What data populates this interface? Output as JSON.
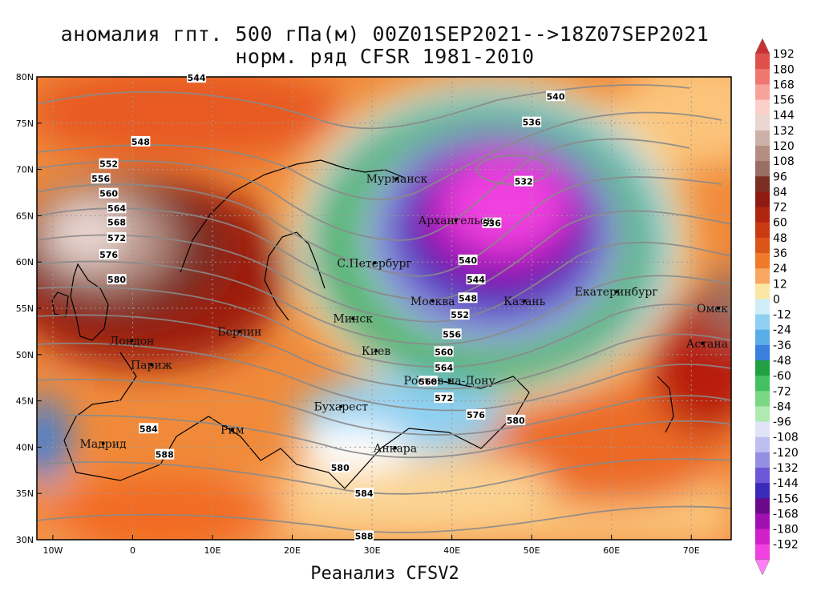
{
  "title": {
    "line1": "аномалия гпт. 500 гПа(м) 00Z01SEP2021-->18Z07SEP2021",
    "line2": "норм. ряд CFSR 1981-2010"
  },
  "footer": "Реанализ CFSV2",
  "map": {
    "lon_range": [
      -12,
      75
    ],
    "lat_range": [
      30,
      80
    ],
    "lat_labels": [
      "30N",
      "35N",
      "40N",
      "45N",
      "50N",
      "55N",
      "60N",
      "65N",
      "70N",
      "75N",
      "80N"
    ],
    "lon_labels": [
      "10W",
      "0",
      "10E",
      "20E",
      "30E",
      "40E",
      "50E",
      "60E",
      "70E"
    ],
    "cities": [
      {
        "name": "Мурманск",
        "lon": 33.1,
        "lat": 69.0
      },
      {
        "name": "Архангельск",
        "lon": 40.5,
        "lat": 64.5
      },
      {
        "name": "С.Петербург",
        "lon": 30.3,
        "lat": 59.9
      },
      {
        "name": "Москва",
        "lon": 37.6,
        "lat": 55.8
      },
      {
        "name": "Казань",
        "lon": 49.1,
        "lat": 55.8
      },
      {
        "name": "Екатеринбург",
        "lon": 60.6,
        "lat": 56.8
      },
      {
        "name": "Минск",
        "lon": 27.6,
        "lat": 53.9
      },
      {
        "name": "Омск",
        "lon": 73.4,
        "lat": 55.0
      },
      {
        "name": "Лондон",
        "lon": -0.1,
        "lat": 51.5
      },
      {
        "name": "Берлин",
        "lon": 13.4,
        "lat": 52.5
      },
      {
        "name": "Киев",
        "lon": 30.5,
        "lat": 50.4
      },
      {
        "name": "Астана",
        "lon": 71.4,
        "lat": 51.2
      },
      {
        "name": "Париж",
        "lon": 2.35,
        "lat": 48.9
      },
      {
        "name": "Ростов-на-Дону",
        "lon": 39.7,
        "lat": 47.2
      },
      {
        "name": "Бухарест",
        "lon": 26.1,
        "lat": 44.4
      },
      {
        "name": "Рим",
        "lon": 12.5,
        "lat": 41.9
      },
      {
        "name": "Мадрид",
        "lon": -3.7,
        "lat": 40.4
      },
      {
        "name": "Анкара",
        "lon": 32.9,
        "lat": 39.9
      }
    ],
    "contour_labels": [
      {
        "text": "544",
        "lon": 8,
        "lat": 79.9
      },
      {
        "text": "540",
        "lon": 53,
        "lat": 77.9
      },
      {
        "text": "536",
        "lon": 50,
        "lat": 75.1
      },
      {
        "text": "548",
        "lon": 1,
        "lat": 73.0
      },
      {
        "text": "552",
        "lon": -3,
        "lat": 70.6
      },
      {
        "text": "556",
        "lon": -4,
        "lat": 69.0
      },
      {
        "text": "560",
        "lon": -3,
        "lat": 67.4
      },
      {
        "text": "564",
        "lon": -2,
        "lat": 65.8
      },
      {
        "text": "568",
        "lon": -2,
        "lat": 64.3
      },
      {
        "text": "572",
        "lon": -2,
        "lat": 62.6
      },
      {
        "text": "576",
        "lon": -3,
        "lat": 60.8
      },
      {
        "text": "580",
        "lon": -2,
        "lat": 58.1
      },
      {
        "text": "532",
        "lon": 49,
        "lat": 68.7
      },
      {
        "text": "536",
        "lon": 45,
        "lat": 64.2
      },
      {
        "text": "540",
        "lon": 42,
        "lat": 60.2
      },
      {
        "text": "544",
        "lon": 43,
        "lat": 58.1
      },
      {
        "text": "548",
        "lon": 42,
        "lat": 56.1
      },
      {
        "text": "552",
        "lon": 41,
        "lat": 54.3
      },
      {
        "text": "556",
        "lon": 40,
        "lat": 52.2
      },
      {
        "text": "560",
        "lon": 39,
        "lat": 50.3
      },
      {
        "text": "564",
        "lon": 39,
        "lat": 48.6
      },
      {
        "text": "568",
        "lon": 37,
        "lat": 47.1
      },
      {
        "text": "572",
        "lon": 39,
        "lat": 45.3
      },
      {
        "text": "576",
        "lon": 43,
        "lat": 43.5
      },
      {
        "text": "580",
        "lon": 48,
        "lat": 42.9
      },
      {
        "text": "584",
        "lon": 2,
        "lat": 42.0
      },
      {
        "text": "588",
        "lon": 4,
        "lat": 39.2
      },
      {
        "text": "580",
        "lon": 26,
        "lat": 37.8
      },
      {
        "text": "584",
        "lon": 29,
        "lat": 35.0
      },
      {
        "text": "588",
        "lon": 29,
        "lat": 30.4
      }
    ]
  },
  "colorbar": {
    "labels": [
      "192",
      "180",
      "168",
      "156",
      "144",
      "132",
      "120",
      "108",
      "96",
      "84",
      "72",
      "60",
      "48",
      "36",
      "24",
      "12",
      "0",
      "-12",
      "-24",
      "-36",
      "-48",
      "-60",
      "-72",
      "-84",
      "-96",
      "-108",
      "-120",
      "-132",
      "-144",
      "-156",
      "-168",
      "-180",
      "-192"
    ],
    "colors": [
      "#c83232",
      "#e0504a",
      "#ee7870",
      "#f7a39c",
      "#fbd0cb",
      "#ead7d2",
      "#cdb1a8",
      "#b48e82",
      "#9a6e62",
      "#7a2e24",
      "#8e1a12",
      "#b0250e",
      "#c93a12",
      "#dc5518",
      "#ee7a2a",
      "#f8a660",
      "#fbe7a3",
      "#cfeefa",
      "#8fd0f2",
      "#5aaee8",
      "#3a7fdc",
      "#20a040",
      "#44c060",
      "#7ad884",
      "#b0eab0",
      "#e0e4f6",
      "#bdbff0",
      "#9390e4",
      "#6a58d6",
      "#3a2ab8",
      "#6a0a8a",
      "#a010b0",
      "#d020c8",
      "#f040e0",
      "#ff80f4"
    ]
  }
}
